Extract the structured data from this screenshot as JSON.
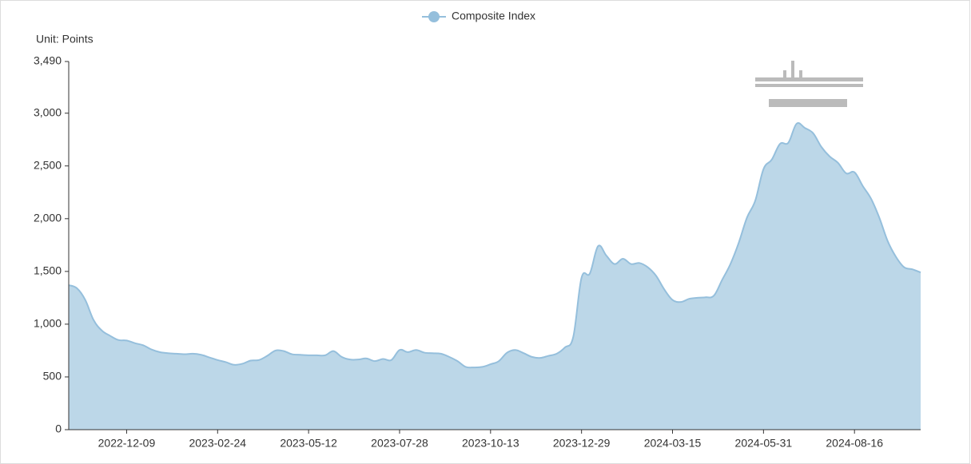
{
  "chart_data": {
    "type": "area",
    "legend": "Composite Index",
    "y_axis_label": "Unit: Points",
    "color": "#95bfdc",
    "fill": "#bcd7e8",
    "ylim": [
      0,
      3490
    ],
    "yticks": [
      0,
      500,
      {
        "value": 1000,
        "label": "1,000"
      },
      {
        "value": 1500,
        "label": "1,500"
      },
      {
        "value": 2000,
        "label": "2,000"
      },
      {
        "value": 2500,
        "label": "2,500"
      },
      {
        "value": 3000,
        "label": "3,000"
      },
      {
        "value": 3490,
        "label": "3,490"
      }
    ],
    "x": [
      null,
      null,
      null,
      null,
      null,
      null,
      null,
      "2022-12-09",
      null,
      null,
      null,
      null,
      null,
      null,
      null,
      null,
      null,
      null,
      "2023-02-24",
      null,
      null,
      null,
      null,
      null,
      null,
      null,
      null,
      null,
      null,
      "2023-05-12",
      null,
      null,
      null,
      null,
      null,
      null,
      null,
      null,
      null,
      null,
      "2023-07-28",
      null,
      null,
      null,
      null,
      null,
      null,
      null,
      null,
      null,
      null,
      "2023-10-13",
      null,
      null,
      null,
      null,
      null,
      null,
      null,
      null,
      null,
      null,
      "2023-12-29",
      null,
      null,
      null,
      null,
      null,
      null,
      null,
      null,
      null,
      null,
      "2024-03-15",
      null,
      null,
      null,
      null,
      null,
      null,
      null,
      null,
      null,
      null,
      "2024-05-31",
      null,
      null,
      null,
      null,
      null,
      null,
      null,
      null,
      null,
      null,
      "2024-08-16",
      null,
      null,
      null,
      null,
      null,
      null,
      null,
      null
    ],
    "values": [
      1370,
      1340,
      1230,
      1040,
      940,
      890,
      850,
      845,
      820,
      800,
      760,
      735,
      725,
      720,
      715,
      720,
      710,
      685,
      660,
      640,
      615,
      625,
      655,
      660,
      700,
      750,
      745,
      715,
      710,
      705,
      705,
      705,
      745,
      690,
      665,
      665,
      675,
      650,
      670,
      660,
      755,
      735,
      755,
      730,
      725,
      720,
      690,
      650,
      595,
      590,
      595,
      620,
      650,
      730,
      755,
      725,
      690,
      680,
      700,
      720,
      780,
      880,
      1440,
      1480,
      1740,
      1650,
      1570,
      1620,
      1570,
      1580,
      1540,
      1460,
      1330,
      1230,
      1210,
      1240,
      1250,
      1255,
      1270,
      1420,
      1570,
      1770,
      2010,
      2170,
      2470,
      2560,
      2710,
      2720,
      2900,
      2860,
      2810,
      2680,
      2590,
      2530,
      2430,
      2440,
      2310,
      2190,
      2010,
      1790,
      1640,
      1540,
      1520,
      1490
    ]
  }
}
